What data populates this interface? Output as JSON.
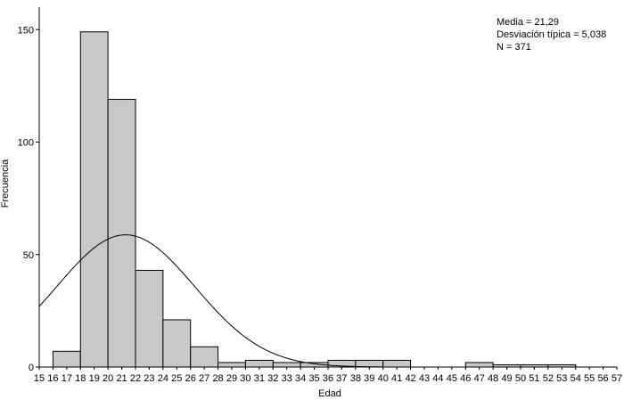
{
  "chart_data": {
    "type": "bar",
    "title": "",
    "xlabel": "Edad",
    "ylabel": "Frecuencia",
    "xlim": [
      15,
      57
    ],
    "ylim": [
      0,
      160
    ],
    "x_ticks": [
      15,
      16,
      17,
      18,
      19,
      20,
      21,
      22,
      23,
      24,
      25,
      26,
      27,
      28,
      29,
      30,
      31,
      32,
      33,
      34,
      35,
      36,
      37,
      38,
      39,
      40,
      41,
      42,
      43,
      44,
      45,
      46,
      47,
      48,
      49,
      50,
      51,
      52,
      53,
      54,
      55,
      56,
      57
    ],
    "y_ticks": [
      0,
      50,
      100,
      150
    ],
    "bin_width": 2,
    "bins": [
      {
        "start": 16,
        "end": 18,
        "count": 7
      },
      {
        "start": 18,
        "end": 20,
        "count": 149
      },
      {
        "start": 20,
        "end": 22,
        "count": 119
      },
      {
        "start": 22,
        "end": 24,
        "count": 43
      },
      {
        "start": 24,
        "end": 26,
        "count": 21
      },
      {
        "start": 26,
        "end": 28,
        "count": 9
      },
      {
        "start": 28,
        "end": 30,
        "count": 2
      },
      {
        "start": 30,
        "end": 32,
        "count": 3
      },
      {
        "start": 32,
        "end": 34,
        "count": 2
      },
      {
        "start": 34,
        "end": 36,
        "count": 2
      },
      {
        "start": 36,
        "end": 38,
        "count": 3
      },
      {
        "start": 38,
        "end": 40,
        "count": 3
      },
      {
        "start": 40,
        "end": 42,
        "count": 3
      },
      {
        "start": 46,
        "end": 48,
        "count": 2
      },
      {
        "start": 48,
        "end": 50,
        "count": 1
      },
      {
        "start": 50,
        "end": 52,
        "count": 1
      },
      {
        "start": 52,
        "end": 54,
        "count": 1
      }
    ],
    "normal_curve": {
      "mean": 21.29,
      "sd": 5.038,
      "n": 371
    },
    "stats_text": [
      "Media = 21,29",
      "Desviación típica = 5,038",
      "N = 371"
    ],
    "colors": {
      "bar_fill": "#c8c8c8",
      "bar_stroke": "#000000",
      "curve": "#000000",
      "axis": "#000000"
    }
  }
}
